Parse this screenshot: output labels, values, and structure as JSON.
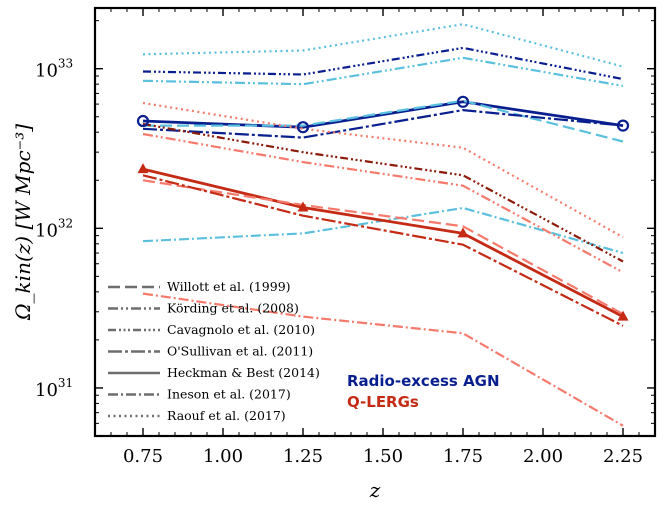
{
  "chart_data": {
    "type": "line",
    "title": "",
    "xlabel": "z",
    "ylabel": "Ω_kin(z) [W Mpc⁻³]",
    "yscale": "log",
    "xlim": [
      0.6,
      2.35
    ],
    "ylim": [
      5e+30,
      2.4e+33
    ],
    "x_ticks": [
      0.75,
      1.0,
      1.25,
      1.5,
      1.75,
      2.0,
      2.25
    ],
    "x_tick_labels": [
      "0.75",
      "1.00",
      "1.25",
      "1.50",
      "1.75",
      "2.00",
      "2.25"
    ],
    "y_ticks": [
      1e+31,
      1e+32,
      1e+33
    ],
    "y_tick_labels": [
      "10",
      "10",
      "10"
    ],
    "y_tick_exponents": [
      "31",
      "32",
      "33"
    ],
    "x": [
      0.75,
      1.25,
      1.75,
      2.25
    ],
    "legend": [
      {
        "label": "Willott et al. (1999)",
        "style": "dashed"
      },
      {
        "label": "Körding et al. (2008)",
        "style": "dashdotdot"
      },
      {
        "label": "Cavagnolo et al. (2010)",
        "style": "dashdotdotdot"
      },
      {
        "label": "O'Sullivan et al. (2011)",
        "style": "longdashdot"
      },
      {
        "label": "Heckman & Best (2014)",
        "style": "solid"
      },
      {
        "label": "Ineson et al. (2017)",
        "style": "dashdot"
      },
      {
        "label": "Raouf et al. (2017)",
        "style": "dotted"
      }
    ],
    "groups": [
      {
        "label": "Radio-excess AGN",
        "color": "#0a1f8f"
      },
      {
        "label": "Q-LERGs",
        "color": "#c42a14"
      }
    ],
    "series": [
      {
        "name": "Radio-excess AGN – Raouf et al. (2017)",
        "color": "#5bc0de",
        "style": "dotted",
        "values": [
          1.23e+33,
          1.3e+33,
          1.9e+33,
          1.03e+33
        ]
      },
      {
        "name": "Radio-excess AGN – Cavagnolo et al. (2010)",
        "color": "#0a1f8f",
        "style": "dashdotdotdot",
        "values": [
          9.6e+32,
          9.2e+32,
          1.35e+33,
          8.6e+32
        ]
      },
      {
        "name": "Radio-excess AGN – Körding et al. (2008)",
        "color": "#5bc0de",
        "style": "dashdotdot",
        "values": [
          8.4e+32,
          8e+32,
          1.17e+33,
          7.8e+32
        ]
      },
      {
        "name": "Radio-excess AGN – Heckman & Best (2014)",
        "color": "#0a1f8f",
        "style": "solid",
        "marker": "circle",
        "values": [
          4.7e+32,
          4.3e+32,
          6.2e+32,
          4.4e+32
        ]
      },
      {
        "name": "Radio-excess AGN – Willott et al. (1999)",
        "color": "#5bc0de",
        "style": "dashed",
        "values": [
          4.4e+32,
          4.4e+32,
          6.3e+32,
          3.5e+32
        ]
      },
      {
        "name": "Radio-excess AGN – O'Sullivan et al. (2011)",
        "color": "#0a1f8f",
        "style": "longdashdot",
        "values": [
          4.2e+32,
          3.7e+32,
          5.5e+32,
          4.4e+32
        ]
      },
      {
        "name": "Radio-excess AGN – Ineson et al. (2017)",
        "color": "#5bc0de",
        "style": "dashdot",
        "values": [
          8.3e+31,
          9.3e+31,
          1.34e+32,
          7e+31
        ]
      },
      {
        "name": "Q-LERGs – Raouf et al. (2017)",
        "color": "#f57a6c",
        "style": "dotted",
        "values": [
          6.1e+32,
          4.2e+32,
          3.2e+32,
          8.8e+31
        ]
      },
      {
        "name": "Q-LERGs – Cavagnolo et al. (2010)",
        "color": "#8c1a0a",
        "style": "dashdotdotdot",
        "values": [
          4.5e+32,
          3e+32,
          2.15e+32,
          6.2e+31
        ]
      },
      {
        "name": "Q-LERGs – Körding et al. (2008)",
        "color": "#f57a6c",
        "style": "dashdotdot",
        "values": [
          3.9e+32,
          2.6e+32,
          1.85e+32,
          5.3e+31
        ]
      },
      {
        "name": "Q-LERGs – Heckman & Best (2014)",
        "color": "#c42a14",
        "style": "solid",
        "marker": "triangle",
        "values": [
          2.35e+32,
          1.35e+32,
          9.3e+31,
          2.8e+31
        ]
      },
      {
        "name": "Q-LERGs – Willott et al. (1999)",
        "color": "#f57a6c",
        "style": "dashed",
        "values": [
          2e+32,
          1.4e+32,
          1.03e+32,
          2.9e+31
        ]
      },
      {
        "name": "Q-LERGs – O'Sullivan et al. (2011)",
        "color": "#c42a14",
        "style": "longdashdot",
        "values": [
          2.15e+32,
          1.2e+32,
          7.9e+31,
          2.45e+31
        ]
      },
      {
        "name": "Q-LERGs – Ineson et al. (2017)",
        "color": "#f57a6c",
        "style": "dashdot",
        "values": [
          3.9e+31,
          2.8e+31,
          2.2e+31,
          5.8e+30
        ]
      }
    ]
  }
}
